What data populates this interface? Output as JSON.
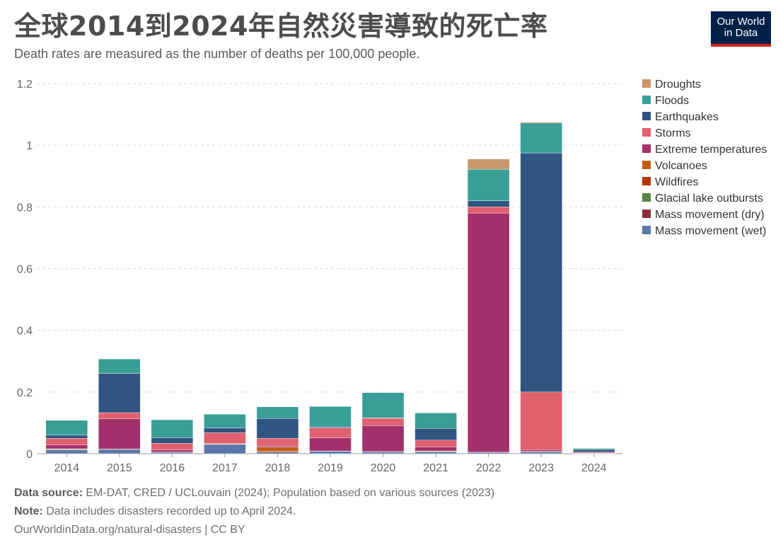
{
  "title": "全球2014到2024年自然災害導致的死亡率",
  "subtitle": "Death rates are measured as the number of deaths per 100,000 people.",
  "logo": {
    "line1": "Our World",
    "line2": "in Data"
  },
  "footer": {
    "source_label": "Data source:",
    "source_text": " EM-DAT, CRED / UCLouvain (2024); Population based on various sources (2023)",
    "note_label": "Note:",
    "note_text": " Data includes disasters recorded up to April 2024.",
    "url": "OurWorldinData.org/natural-disasters | CC BY"
  },
  "chart_data": {
    "type": "bar",
    "stacked": true,
    "categories": [
      "2014",
      "2015",
      "2016",
      "2017",
      "2018",
      "2019",
      "2020",
      "2021",
      "2022",
      "2023",
      "2024"
    ],
    "ylim": [
      0,
      1.2
    ],
    "yticks": [
      0,
      0.2,
      0.4,
      0.6,
      0.8,
      1,
      1.2
    ],
    "ytick_labels": [
      "0",
      "0.2",
      "0.4",
      "0.6",
      "0.8",
      "1",
      "1.2"
    ],
    "grid": true,
    "legend_position": "right",
    "series": [
      {
        "name": "Mass movement (wet)",
        "color": "#5b79a8",
        "values": [
          0.013,
          0.014,
          0.004,
          0.03,
          0.005,
          0.008,
          0.006,
          0.006,
          0.004,
          0.006,
          0.001
        ]
      },
      {
        "name": "Mass movement (dry)",
        "color": "#883039",
        "values": [
          0,
          0,
          0,
          0,
          0,
          0,
          0,
          0,
          0,
          0,
          0
        ]
      },
      {
        "name": "Glacial lake outbursts",
        "color": "#578145",
        "values": [
          0,
          0,
          0,
          0,
          0,
          0,
          0,
          0,
          0,
          0,
          0
        ]
      },
      {
        "name": "Wildfires",
        "color": "#b13507",
        "values": [
          0.001,
          0.001,
          0.001,
          0.002,
          0.003,
          0.001,
          0.001,
          0.001,
          0.001,
          0.002,
          0
        ]
      },
      {
        "name": "Volcanoes",
        "color": "#c15e13",
        "values": [
          0.002,
          0,
          0,
          0,
          0.013,
          0,
          0,
          0.002,
          0,
          0,
          0
        ]
      },
      {
        "name": "Extreme temperatures",
        "color": "#a2306a",
        "values": [
          0.012,
          0.098,
          0.007,
          0.001,
          0.004,
          0.042,
          0.084,
          0.013,
          0.775,
          0.005,
          0.001
        ]
      },
      {
        "name": "Storms",
        "color": "#e0606e",
        "values": [
          0.022,
          0.02,
          0.022,
          0.035,
          0.025,
          0.033,
          0.024,
          0.022,
          0.02,
          0.187,
          0.003
        ]
      },
      {
        "name": "Earthquakes",
        "color": "#2f5580",
        "values": [
          0.01,
          0.127,
          0.018,
          0.015,
          0.064,
          0.003,
          0.001,
          0.038,
          0.02,
          0.775,
          0.008
        ]
      },
      {
        "name": "Floods",
        "color": "#3a9e97",
        "values": [
          0.048,
          0.047,
          0.058,
          0.045,
          0.038,
          0.066,
          0.082,
          0.05,
          0.102,
          0.097,
          0.004
        ]
      },
      {
        "name": "Droughts",
        "color": "#c9976a",
        "values": [
          0,
          0,
          0,
          0,
          0,
          0,
          0,
          0,
          0.033,
          0.003,
          0
        ]
      }
    ]
  }
}
